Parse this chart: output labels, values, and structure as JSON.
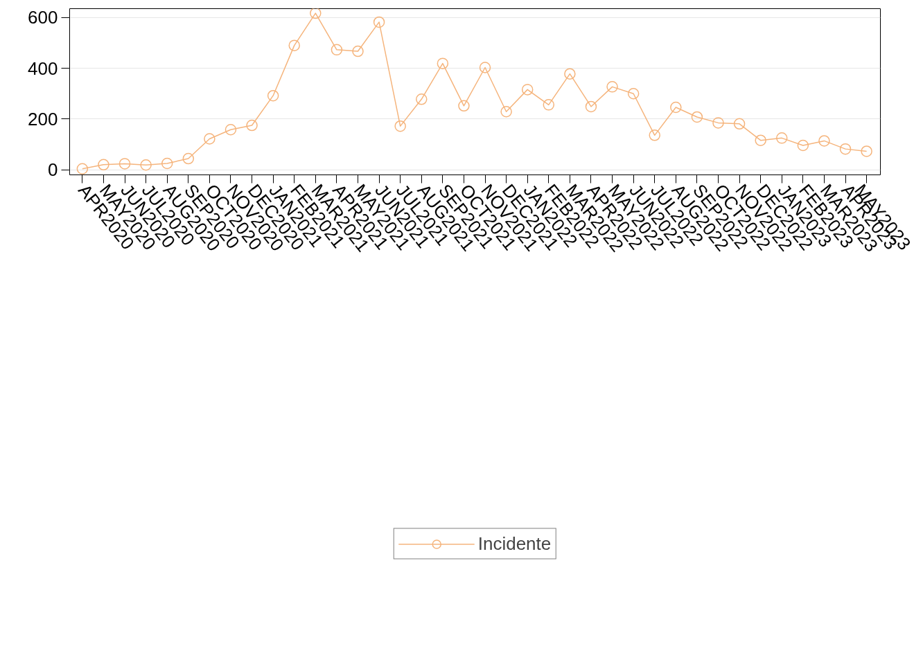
{
  "chart_data": {
    "type": "line",
    "categories": [
      "APR2020",
      "MAY2020",
      "JUN2020",
      "JUL2020",
      "AUG2020",
      "SEP2020",
      "OCT2020",
      "NOV2020",
      "DEC2020",
      "JAN2021",
      "FEB2021",
      "MAR2021",
      "APR2021",
      "MAY2021",
      "JUN2021",
      "JUL2021",
      "AUG2021",
      "SEP2021",
      "OCT2021",
      "NOV2021",
      "DEC2021",
      "JAN2022",
      "FEB2022",
      "MAR2022",
      "APR2022",
      "MAY2022",
      "JUN2022",
      "JUL2022",
      "AUG2022",
      "SEP2022",
      "OCT2022",
      "NOV2022",
      "DEC2022",
      "JAN2023",
      "FEB2023",
      "MAR2023",
      "APR2023",
      "MAY2023"
    ],
    "series": [
      {
        "name": "Incidente",
        "color": "#f5b47c",
        "values": [
          4,
          20,
          24,
          19,
          25,
          44,
          122,
          158,
          175,
          292,
          490,
          617,
          473,
          467,
          582,
          172,
          278,
          419,
          252,
          403,
          229,
          316,
          256,
          378,
          249,
          327,
          300,
          136,
          246,
          208,
          185,
          181,
          116,
          125,
          96,
          114,
          82,
          73
        ]
      }
    ],
    "ylim": [
      -20,
      635
    ],
    "yticks": [
      0,
      200,
      400,
      600
    ],
    "grid": "y",
    "legend": "bottom",
    "marker": "circle",
    "line_style": "solid"
  }
}
